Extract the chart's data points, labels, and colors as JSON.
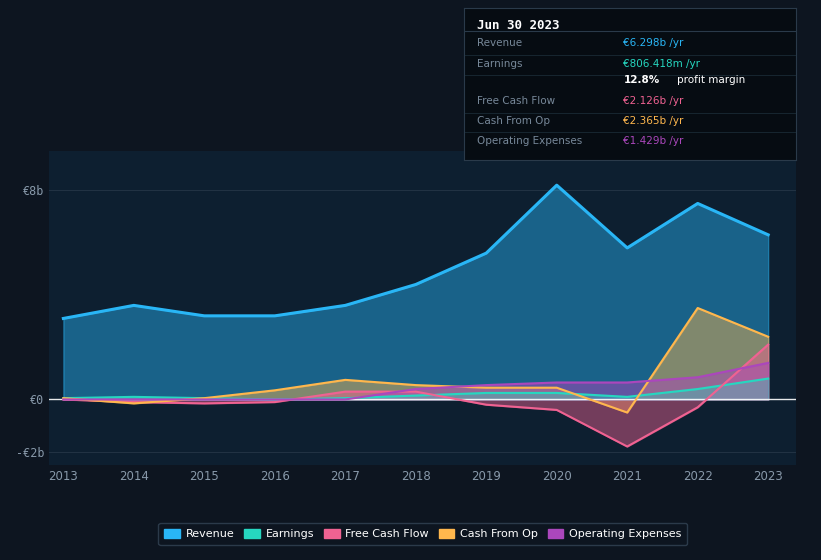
{
  "background_color": "#0d1520",
  "plot_bg_color": "#0d1f30",
  "years": [
    2013,
    2014,
    2015,
    2016,
    2017,
    2018,
    2019,
    2020,
    2021,
    2022,
    2023
  ],
  "revenue": [
    3.1,
    3.6,
    3.2,
    3.2,
    3.6,
    4.4,
    5.6,
    8.2,
    5.8,
    7.5,
    6.3
  ],
  "earnings": [
    0.05,
    0.1,
    0.05,
    0.0,
    0.05,
    0.15,
    0.25,
    0.25,
    0.1,
    0.4,
    0.8
  ],
  "free_cash_flow": [
    0.0,
    -0.1,
    -0.15,
    -0.1,
    0.3,
    0.3,
    -0.2,
    -0.4,
    -1.8,
    -0.3,
    2.1
  ],
  "cash_from_op": [
    0.05,
    -0.15,
    0.05,
    0.35,
    0.75,
    0.55,
    0.45,
    0.45,
    -0.5,
    3.5,
    2.4
  ],
  "operating_expenses": [
    0.0,
    0.0,
    0.0,
    0.0,
    0.0,
    0.4,
    0.55,
    0.65,
    0.65,
    0.85,
    1.4
  ],
  "revenue_color": "#29b6f6",
  "earnings_color": "#26d7c0",
  "free_cash_flow_color": "#f06292",
  "cash_from_op_color": "#ffb74d",
  "operating_expenses_color": "#ab47bc",
  "ylim": [
    -2.5,
    9.5
  ],
  "zero_line_y": 0,
  "info_box_title": "Jun 30 2023",
  "info_rows": [
    {
      "label": "Revenue",
      "value": "€6.298b /yr",
      "value_color": "#29b6f6"
    },
    {
      "label": "Earnings",
      "value": "€806.418m /yr",
      "value_color": "#26d7c0"
    },
    {
      "label": "",
      "value": "12.8% profit margin",
      "value_color": "#ffffff",
      "bold": "12.8%"
    },
    {
      "label": "Free Cash Flow",
      "value": "€2.126b /yr",
      "value_color": "#f06292"
    },
    {
      "label": "Cash From Op",
      "value": "€2.365b /yr",
      "value_color": "#ffb74d"
    },
    {
      "label": "Operating Expenses",
      "value": "€1.429b /yr",
      "value_color": "#ab47bc"
    }
  ],
  "legend_items": [
    {
      "label": "Revenue",
      "color": "#29b6f6"
    },
    {
      "label": "Earnings",
      "color": "#26d7c0"
    },
    {
      "label": "Free Cash Flow",
      "color": "#f06292"
    },
    {
      "label": "Cash From Op",
      "color": "#ffb74d"
    },
    {
      "label": "Operating Expenses",
      "color": "#ab47bc"
    }
  ]
}
